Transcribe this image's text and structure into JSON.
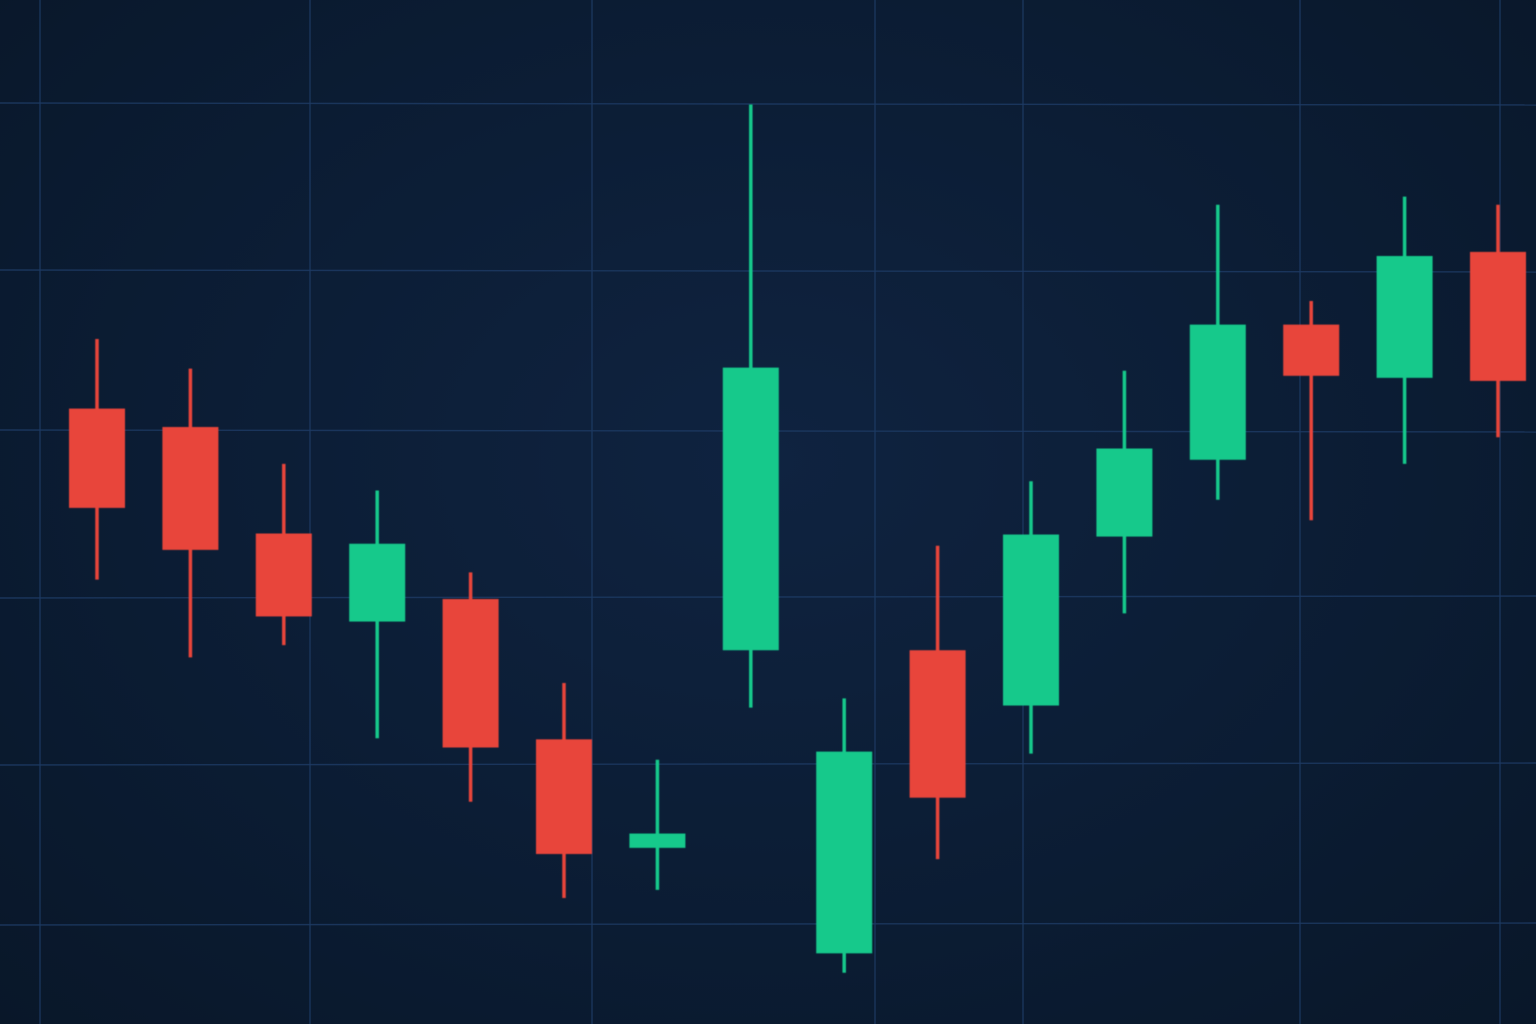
{
  "colors": {
    "background": "#0b1c33",
    "grid": "#1d3a63",
    "up": "#13c98b",
    "down": "#e8453a"
  },
  "chart_data": {
    "type": "candlestick",
    "title": "",
    "xlabel": "",
    "ylabel": "",
    "grid": true,
    "legend": "none",
    "ylim": [
      0,
      100
    ],
    "candles": [
      {
        "index": 1,
        "open": 60.1,
        "high": 66.9,
        "low": 43.4,
        "close": 50.4
      },
      {
        "index": 2,
        "open": 58.3,
        "high": 64.0,
        "low": 35.8,
        "close": 46.3
      },
      {
        "index": 3,
        "open": 47.9,
        "high": 54.7,
        "low": 37.0,
        "close": 39.8
      },
      {
        "index": 4,
        "open": 39.3,
        "high": 52.1,
        "low": 27.9,
        "close": 46.9
      },
      {
        "index": 5,
        "open": 41.5,
        "high": 44.1,
        "low": 21.7,
        "close": 27.0
      },
      {
        "index": 6,
        "open": 27.8,
        "high": 33.3,
        "low": 12.3,
        "close": 16.6
      },
      {
        "index": 7,
        "open": 17.2,
        "high": 25.8,
        "low": 13.1,
        "close": 18.6
      },
      {
        "index": 8,
        "open": 36.5,
        "high": 89.8,
        "low": 30.9,
        "close": 64.1
      },
      {
        "index": 9,
        "open": 6.9,
        "high": 31.8,
        "low": 5.0,
        "close": 26.6
      },
      {
        "index": 10,
        "open": 36.5,
        "high": 46.7,
        "low": 16.1,
        "close": 22.1
      },
      {
        "index": 11,
        "open": 31.1,
        "high": 53.0,
        "low": 26.4,
        "close": 47.8
      },
      {
        "index": 12,
        "open": 47.6,
        "high": 63.8,
        "low": 40.1,
        "close": 56.2
      },
      {
        "index": 13,
        "open": 55.1,
        "high": 80.0,
        "low": 51.2,
        "close": 68.3
      },
      {
        "index": 14,
        "open": 68.3,
        "high": 70.6,
        "low": 49.2,
        "close": 63.3
      },
      {
        "index": 15,
        "open": 63.1,
        "high": 80.8,
        "low": 54.7,
        "close": 75.0
      },
      {
        "index": 16,
        "open": 75.4,
        "high": 80.0,
        "low": 57.3,
        "close": 62.8
      }
    ]
  }
}
